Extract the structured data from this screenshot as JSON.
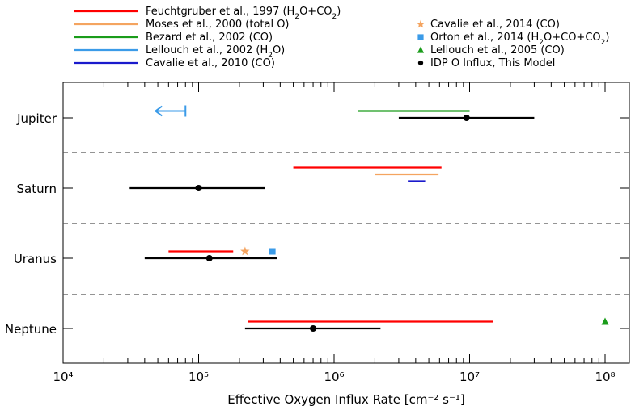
{
  "chart_data": {
    "type": "range",
    "title": "",
    "xlabel": "Effective Oxygen Influx Rate [cm⁻² s⁻¹]",
    "ylabel": "",
    "xscale": "log",
    "xlim": [
      10000,
      150000000
    ],
    "xticks": [
      10000,
      100000,
      1000000,
      10000000,
      100000000
    ],
    "xtick_labels": [
      "10⁴",
      "10⁵",
      "10⁶",
      "10⁷",
      "10⁸"
    ],
    "categories": [
      "Jupiter",
      "Saturn",
      "Uranus",
      "Neptune"
    ],
    "grid": false,
    "category_separators": "dashed",
    "legend_position": "top, two columns above plot",
    "legend_left": [
      {
        "label": "Feuchtgruber et al., 1997 (H₂O+CO₂)",
        "color": "#ff0000",
        "marker": "line"
      },
      {
        "label": "Moses et al., 2000 (total O)",
        "color": "#f4a460",
        "marker": "line"
      },
      {
        "label": "Bezard et al., 2002 (CO)",
        "color": "#1a9c1a",
        "marker": "line"
      },
      {
        "label": "Lellouch et al., 2002 (H₂O)",
        "color": "#3b9be8",
        "marker": "line"
      },
      {
        "label": "Cavalie et al., 2010 (CO)",
        "color": "#1a1acc",
        "marker": "line"
      }
    ],
    "legend_right": [
      {
        "label": "Cavalie et al., 2014 (CO)",
        "color": "#f4a460",
        "marker": "star"
      },
      {
        "label": "Orton et al., 2014 (H₂O+CO+CO₂)",
        "color": "#3b9be8",
        "marker": "square"
      },
      {
        "label": "Lellouch et al., 2005 (CO)",
        "color": "#1a9c1a",
        "marker": "triangle"
      },
      {
        "label": "IDP O Influx, This Model",
        "color": "#000000",
        "marker": "dot"
      }
    ],
    "ranges": [
      {
        "planet": "Jupiter",
        "source": "Bezard et al., 2002 (CO)",
        "color": "#1a9c1a",
        "low": 1500000,
        "high": 10000000,
        "offset": -1
      },
      {
        "planet": "Jupiter",
        "source": "IDP O Influx, This Model",
        "color": "#000000",
        "low": 3000000,
        "high": 30000000,
        "center": 9500000,
        "offset": 0
      },
      {
        "planet": "Saturn",
        "source": "Feuchtgruber et al., 1997 (H₂O+CO₂)",
        "color": "#ff0000",
        "low": 500000,
        "high": 6200000,
        "offset": -3
      },
      {
        "planet": "Saturn",
        "source": "Moses et al., 2000 (total O)",
        "color": "#f4a460",
        "low": 2000000,
        "high": 5900000,
        "offset": -2
      },
      {
        "planet": "Saturn",
        "source": "Cavalie et al., 2010 (CO)",
        "color": "#1a1acc",
        "low": 3500000,
        "high": 4700000,
        "offset": -1
      },
      {
        "planet": "Saturn",
        "source": "IDP O Influx, This Model",
        "color": "#000000",
        "low": 31000,
        "high": 310000,
        "center": 100000,
        "offset": 0
      },
      {
        "planet": "Uranus",
        "source": "Feuchtgruber et al., 1997 (H₂O+CO₂)",
        "color": "#ff0000",
        "low": 60000,
        "high": 180000,
        "offset": -1
      },
      {
        "planet": "Uranus",
        "source": "IDP O Influx, This Model",
        "color": "#000000",
        "low": 40000,
        "high": 380000,
        "center": 120000,
        "offset": 0
      },
      {
        "planet": "Neptune",
        "source": "Feuchtgruber et al., 1997 (H₂O+CO₂)",
        "color": "#ff0000",
        "low": 230000,
        "high": 15000000,
        "offset": -1
      },
      {
        "planet": "Neptune",
        "source": "IDP O Influx, This Model",
        "color": "#000000",
        "low": 220000,
        "high": 2200000,
        "center": 700000,
        "offset": 0
      }
    ],
    "upper_limits": [
      {
        "planet": "Jupiter",
        "source": "Lellouch et al., 2002 (H₂O)",
        "color": "#3b9be8",
        "value": 80000,
        "direction": "less-than"
      }
    ],
    "points": [
      {
        "planet": "Uranus",
        "source": "Cavalie et al., 2014 (CO)",
        "color": "#f4a460",
        "marker": "star",
        "value": 220000,
        "offset": -1
      },
      {
        "planet": "Uranus",
        "source": "Orton et al., 2014 (H₂O+CO+CO₂)",
        "color": "#3b9be8",
        "marker": "square",
        "value": 350000,
        "offset": -1
      },
      {
        "planet": "Neptune",
        "source": "Lellouch et al., 2005 (CO)",
        "color": "#1a9c1a",
        "marker": "triangle",
        "value": 100000000,
        "offset": -1
      }
    ]
  }
}
